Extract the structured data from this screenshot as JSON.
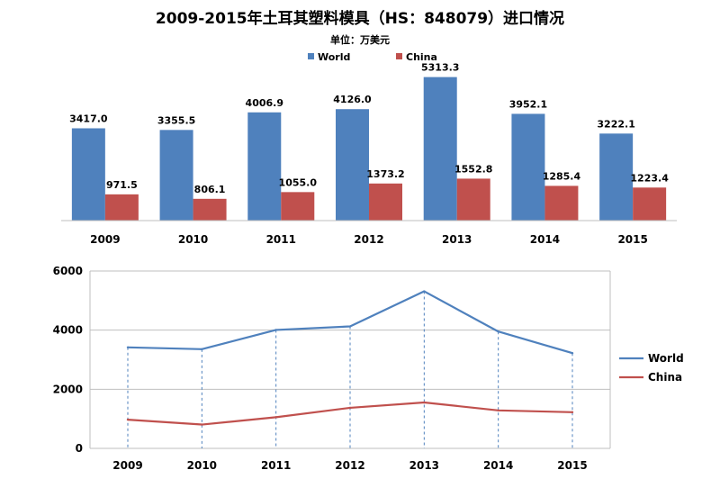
{
  "title": "2009-2015年土耳其塑料模具（HS：848079）进口情况",
  "unit_label": "单位：万美元",
  "colors": {
    "world": "#4f81bd",
    "china": "#c0504d",
    "grid": "#bfbfbf",
    "axis": "#808080"
  },
  "chart_data": [
    {
      "type": "bar",
      "categories": [
        "2009",
        "2010",
        "2011",
        "2012",
        "2013",
        "2014",
        "2015"
      ],
      "series": [
        {
          "name": "World",
          "values": [
            3417.0,
            3355.5,
            4006.9,
            4126.0,
            5313.3,
            3952.1,
            3222.1
          ],
          "labels": [
            "3417.0",
            "3355.5",
            "4006.9",
            "4126.0",
            "5313.3",
            "3952.1",
            "3222.1"
          ]
        },
        {
          "name": "China",
          "values": [
            971.5,
            806.1,
            1055.0,
            1373.2,
            1552.8,
            1285.4,
            1223.4
          ],
          "labels": [
            "971.5",
            "806.1",
            "1055.0",
            "1373.2",
            "1552.8",
            "1285.4",
            "1223.4"
          ]
        }
      ],
      "ylim": [
        0,
        6000
      ],
      "legend": "top-center",
      "grid": false
    },
    {
      "type": "line",
      "categories": [
        "2009",
        "2010",
        "2011",
        "2012",
        "2013",
        "2014",
        "2015"
      ],
      "series": [
        {
          "name": "World",
          "values": [
            3417.0,
            3355.5,
            4006.9,
            4126.0,
            5313.3,
            3952.1,
            3222.1
          ]
        },
        {
          "name": "China",
          "values": [
            971.5,
            806.1,
            1055.0,
            1373.2,
            1552.8,
            1285.4,
            1223.4
          ]
        }
      ],
      "yticks": [
        "0",
        "2000",
        "4000",
        "6000"
      ],
      "ylim": [
        0,
        6000
      ],
      "legend": "right",
      "grid": true
    }
  ]
}
